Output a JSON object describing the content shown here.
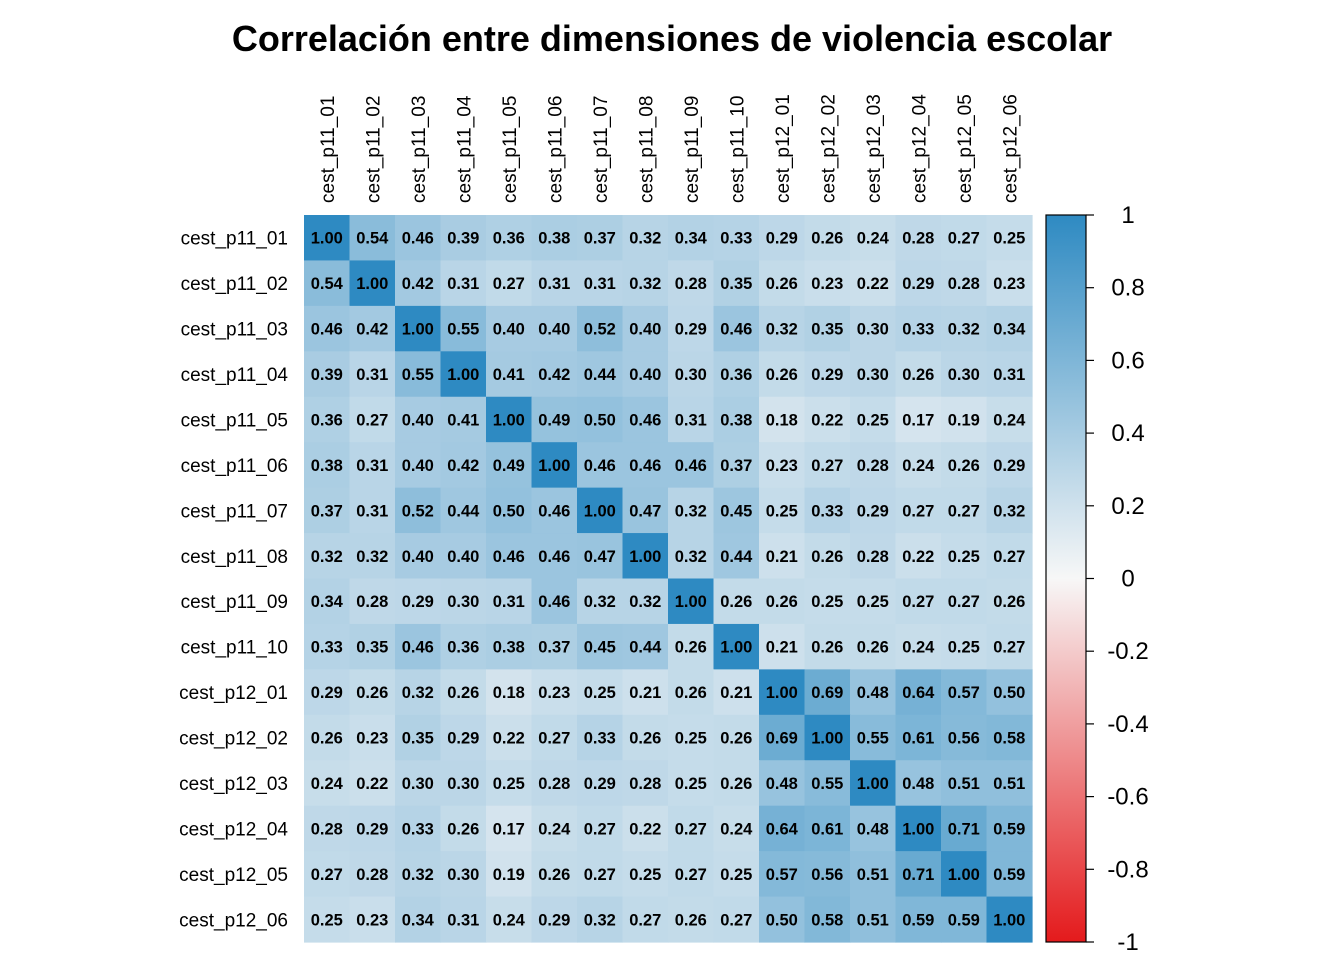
{
  "chart_data": {
    "type": "heatmap",
    "title": "Correlación entre dimensiones de violencia escolar",
    "variables": [
      "cest_p11_01",
      "cest_p11_02",
      "cest_p11_03",
      "cest_p11_04",
      "cest_p11_05",
      "cest_p11_06",
      "cest_p11_07",
      "cest_p11_08",
      "cest_p11_09",
      "cest_p11_10",
      "cest_p12_01",
      "cest_p12_02",
      "cest_p12_03",
      "cest_p12_04",
      "cest_p12_05",
      "cest_p12_06"
    ],
    "matrix": [
      [
        1.0,
        0.54,
        0.46,
        0.39,
        0.36,
        0.38,
        0.37,
        0.32,
        0.34,
        0.33,
        0.29,
        0.26,
        0.24,
        0.28,
        0.27,
        0.25
      ],
      [
        0.54,
        1.0,
        0.42,
        0.31,
        0.27,
        0.31,
        0.31,
        0.32,
        0.28,
        0.35,
        0.26,
        0.23,
        0.22,
        0.29,
        0.28,
        0.23
      ],
      [
        0.46,
        0.42,
        1.0,
        0.55,
        0.4,
        0.4,
        0.52,
        0.4,
        0.29,
        0.46,
        0.32,
        0.35,
        0.3,
        0.33,
        0.32,
        0.34
      ],
      [
        0.39,
        0.31,
        0.55,
        1.0,
        0.41,
        0.42,
        0.44,
        0.4,
        0.3,
        0.36,
        0.26,
        0.29,
        0.3,
        0.26,
        0.3,
        0.31
      ],
      [
        0.36,
        0.27,
        0.4,
        0.41,
        1.0,
        0.49,
        0.5,
        0.46,
        0.31,
        0.38,
        0.18,
        0.22,
        0.25,
        0.17,
        0.19,
        0.24
      ],
      [
        0.38,
        0.31,
        0.4,
        0.42,
        0.49,
        1.0,
        0.46,
        0.46,
        0.46,
        0.37,
        0.23,
        0.27,
        0.28,
        0.24,
        0.26,
        0.29
      ],
      [
        0.37,
        0.31,
        0.52,
        0.44,
        0.5,
        0.46,
        1.0,
        0.47,
        0.32,
        0.45,
        0.25,
        0.33,
        0.29,
        0.27,
        0.27,
        0.32
      ],
      [
        0.32,
        0.32,
        0.4,
        0.4,
        0.46,
        0.46,
        0.47,
        1.0,
        0.32,
        0.44,
        0.21,
        0.26,
        0.28,
        0.22,
        0.25,
        0.27
      ],
      [
        0.34,
        0.28,
        0.29,
        0.3,
        0.31,
        0.46,
        0.32,
        0.32,
        1.0,
        0.26,
        0.26,
        0.25,
        0.25,
        0.27,
        0.27,
        0.26
      ],
      [
        0.33,
        0.35,
        0.46,
        0.36,
        0.38,
        0.37,
        0.45,
        0.44,
        0.26,
        1.0,
        0.21,
        0.26,
        0.26,
        0.24,
        0.25,
        0.27
      ],
      [
        0.29,
        0.26,
        0.32,
        0.26,
        0.18,
        0.23,
        0.25,
        0.21,
        0.26,
        0.21,
        1.0,
        0.69,
        0.48,
        0.64,
        0.57,
        0.5
      ],
      [
        0.26,
        0.23,
        0.35,
        0.29,
        0.22,
        0.27,
        0.33,
        0.26,
        0.25,
        0.26,
        0.69,
        1.0,
        0.55,
        0.61,
        0.56,
        0.58
      ],
      [
        0.24,
        0.22,
        0.3,
        0.3,
        0.25,
        0.28,
        0.29,
        0.28,
        0.25,
        0.26,
        0.48,
        0.55,
        1.0,
        0.48,
        0.51,
        0.51
      ],
      [
        0.28,
        0.29,
        0.33,
        0.26,
        0.17,
        0.24,
        0.27,
        0.22,
        0.27,
        0.24,
        0.64,
        0.61,
        0.48,
        1.0,
        0.71,
        0.59
      ],
      [
        0.27,
        0.28,
        0.32,
        0.3,
        0.19,
        0.26,
        0.27,
        0.25,
        0.27,
        0.25,
        0.57,
        0.56,
        0.51,
        0.71,
        1.0,
        0.59
      ],
      [
        0.25,
        0.23,
        0.34,
        0.31,
        0.24,
        0.29,
        0.32,
        0.27,
        0.26,
        0.27,
        0.5,
        0.58,
        0.51,
        0.59,
        0.59,
        1.0
      ]
    ],
    "colorbar": {
      "ticks": [
        1,
        0.8,
        0.6,
        0.4,
        0.2,
        0,
        -0.2,
        -0.4,
        -0.6,
        -0.8,
        -1
      ],
      "range": [
        -1,
        1
      ],
      "colors": {
        "neg": "#E41A1C",
        "mid": "#F7F7F7",
        "pos": "#2E8AC2"
      }
    },
    "legend": "right",
    "grid": false
  }
}
